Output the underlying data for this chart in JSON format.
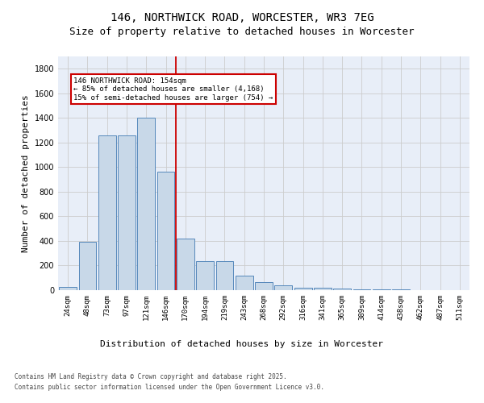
{
  "title": "146, NORTHWICK ROAD, WORCESTER, WR3 7EG",
  "subtitle": "Size of property relative to detached houses in Worcester",
  "xlabel": "Distribution of detached houses by size in Worcester",
  "ylabel": "Number of detached properties",
  "categories": [
    "24sqm",
    "48sqm",
    "73sqm",
    "97sqm",
    "121sqm",
    "146sqm",
    "170sqm",
    "194sqm",
    "219sqm",
    "243sqm",
    "268sqm",
    "292sqm",
    "316sqm",
    "341sqm",
    "365sqm",
    "389sqm",
    "414sqm",
    "438sqm",
    "462sqm",
    "487sqm",
    "511sqm"
  ],
  "values": [
    25,
    390,
    1260,
    1260,
    1400,
    960,
    420,
    235,
    235,
    115,
    65,
    40,
    20,
    20,
    15,
    5,
    5,
    5,
    2,
    2,
    1
  ],
  "bar_color": "#c8d8e8",
  "bar_edge_color": "#5588bb",
  "grid_color": "#cccccc",
  "bg_color": "#e8eef8",
  "red_line_index": 5,
  "annotation_line1": "146 NORTHWICK ROAD: 154sqm",
  "annotation_line2": "← 85% of detached houses are smaller (4,168)",
  "annotation_line3": "15% of semi-detached houses are larger (754) →",
  "annotation_box_color": "#cc0000",
  "ylim": [
    0,
    1900
  ],
  "yticks": [
    0,
    200,
    400,
    600,
    800,
    1000,
    1200,
    1400,
    1600,
    1800
  ],
  "footnote1": "Contains HM Land Registry data © Crown copyright and database right 2025.",
  "footnote2": "Contains public sector information licensed under the Open Government Licence v3.0.",
  "title_fontsize": 10,
  "subtitle_fontsize": 9,
  "ylabel_fontsize": 8,
  "xlabel_fontsize": 8,
  "tick_fontsize": 6.5,
  "annotation_fontsize": 6.5,
  "footnote_fontsize": 5.5
}
